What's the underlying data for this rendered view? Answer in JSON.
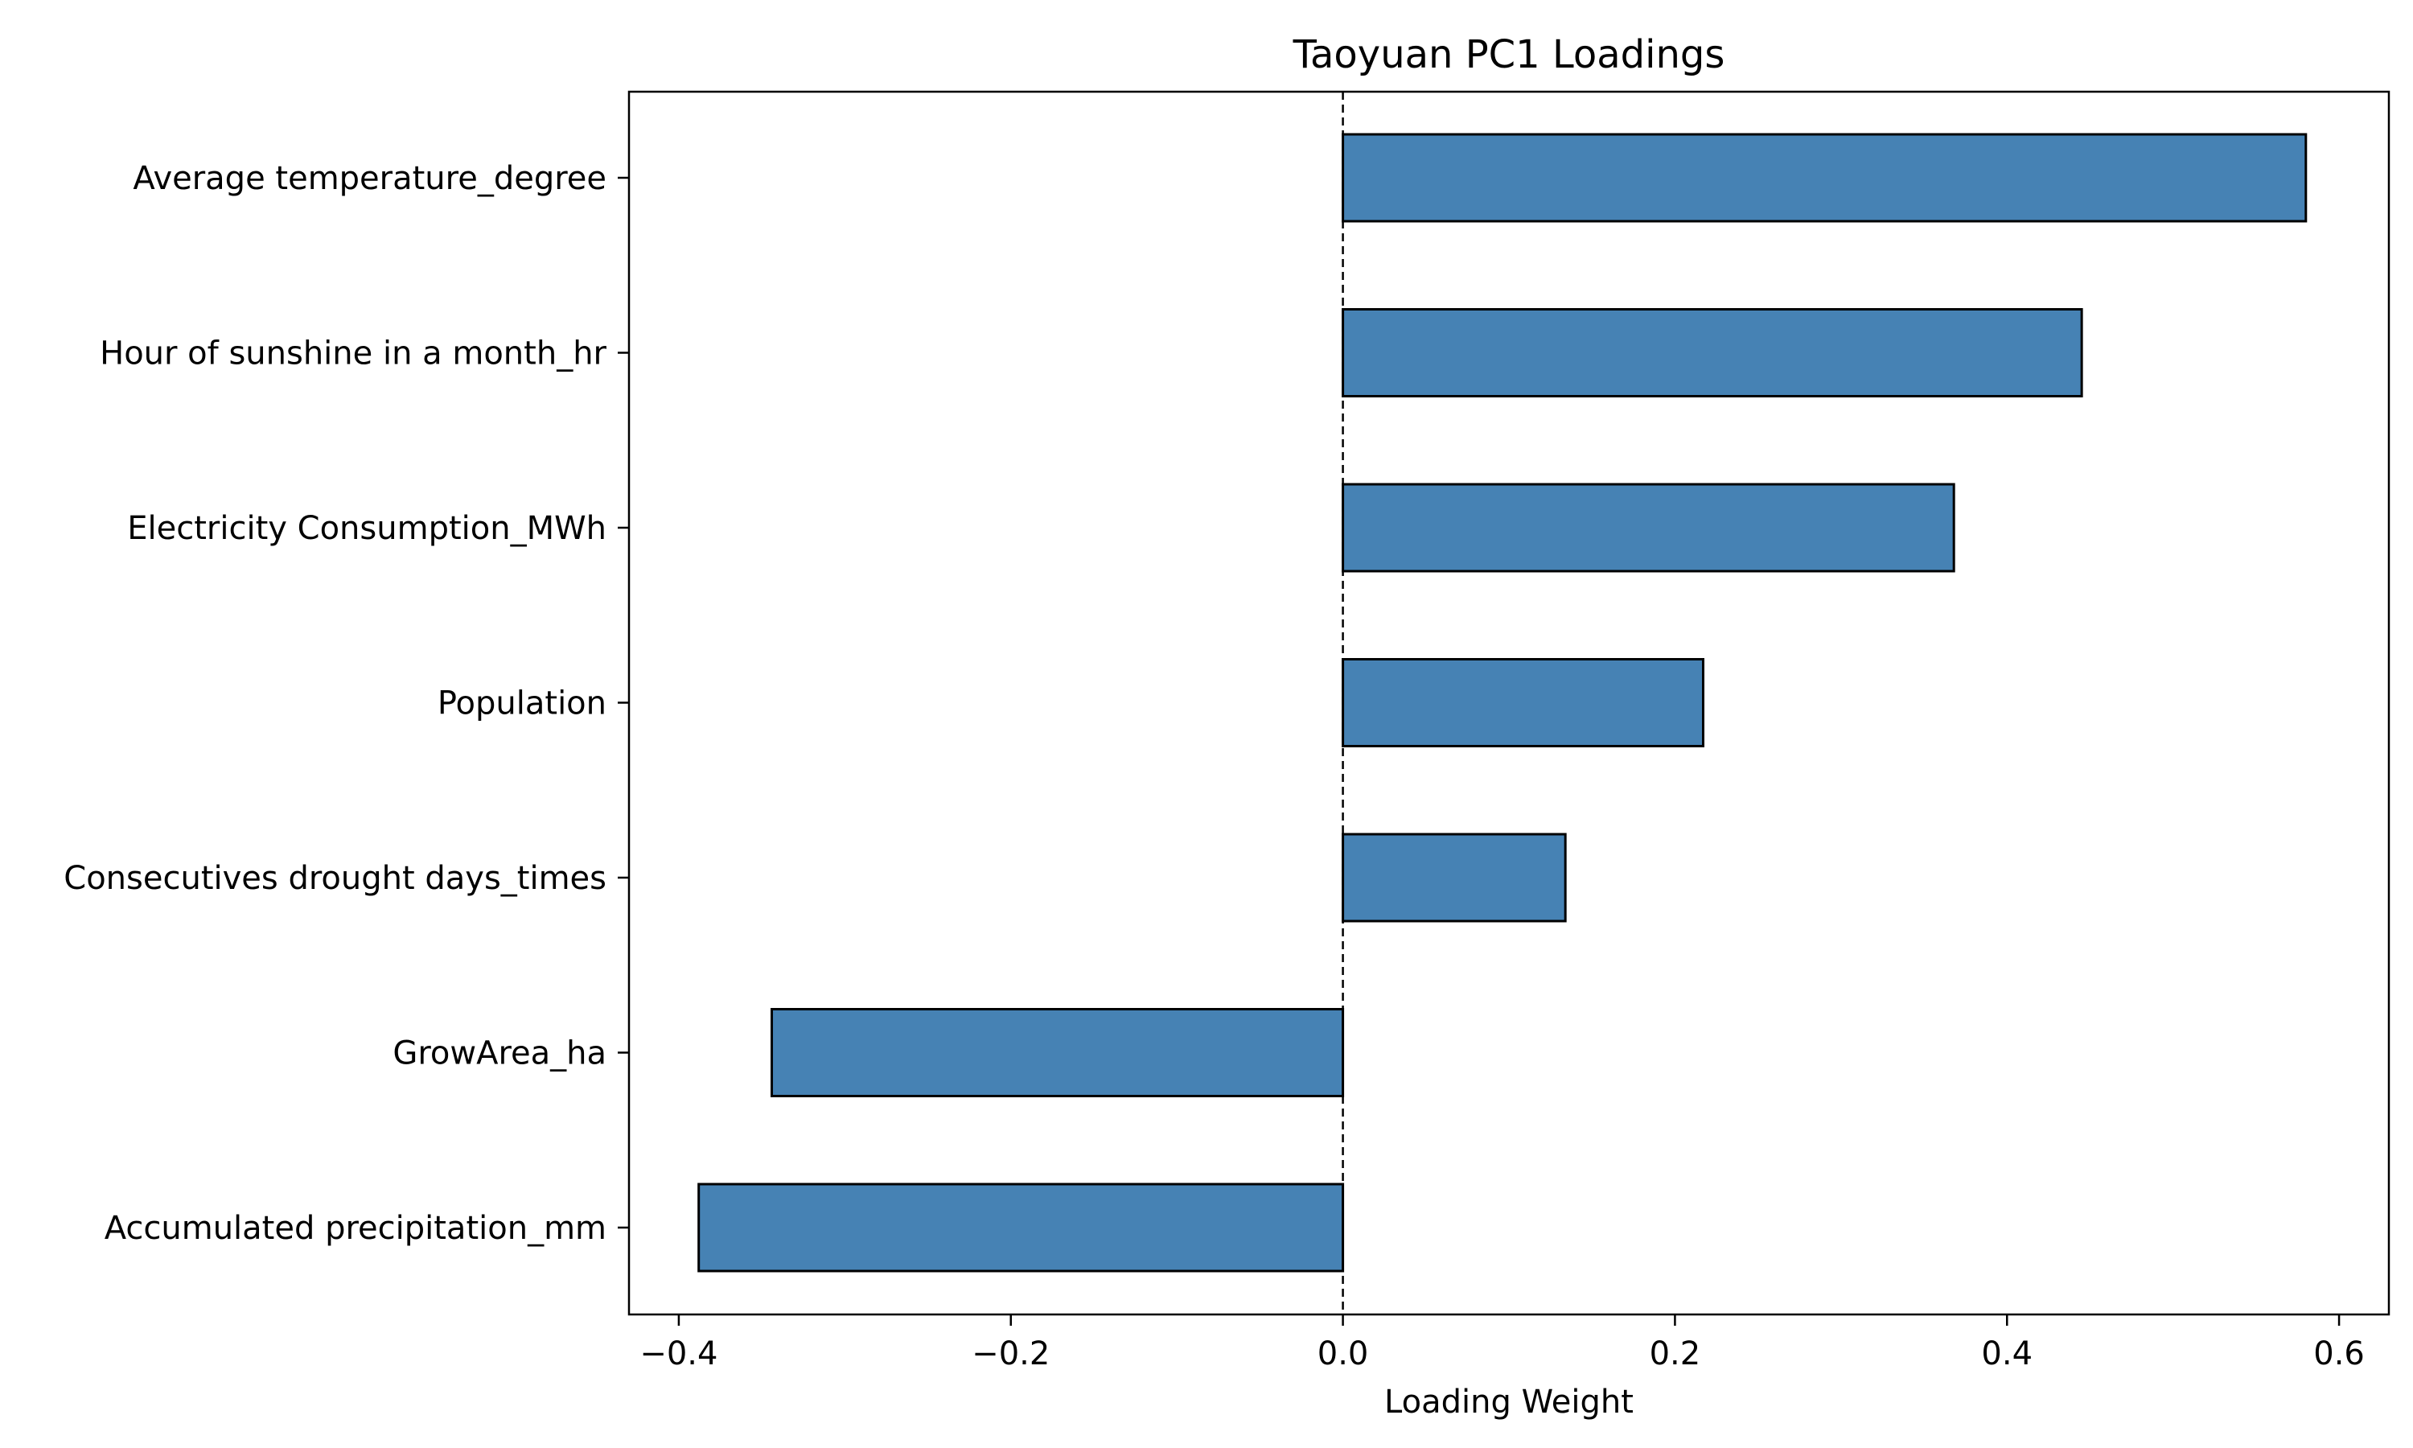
{
  "chart_data": {
    "type": "bar",
    "orientation": "horizontal",
    "title": "Taoyuan PC1 Loadings",
    "xlabel": "Loading Weight",
    "ylabel": "",
    "xlim": [
      -0.43,
      0.63
    ],
    "xticks": [
      -0.4,
      -0.2,
      0.0,
      0.2,
      0.4,
      0.6
    ],
    "xtick_labels": [
      "−0.4",
      "−0.2",
      "0.0",
      "0.2",
      "0.4",
      "0.6"
    ],
    "categories": [
      "Average temperature_degree",
      "Hour of sunshine in a month_hr",
      "Electricity Consumption_MWh",
      "Population",
      "Consecutives drought days_times",
      "GrowArea_ha",
      "Accumulated precipitation_mm"
    ],
    "values": [
      0.58,
      0.445,
      0.368,
      0.217,
      0.134,
      -0.344,
      -0.388
    ],
    "bar_color": "#4682b4",
    "edge_color": "#000000",
    "zero_line": "dashed",
    "grid": false,
    "legend": "none"
  }
}
